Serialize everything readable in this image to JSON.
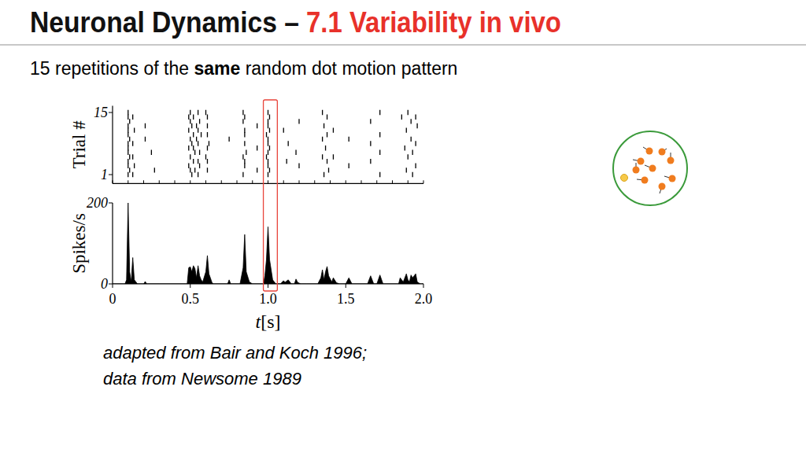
{
  "header": {
    "title": "Neuronal Dynamics –",
    "section": "7.1 Variability in vivo"
  },
  "subtitle": {
    "before": "15 repetitions of the",
    "bold": "same",
    "after": "random dot motion pattern"
  },
  "caption": [
    "adapted from Bair and Koch 1996;",
    "data from Newsome 1989"
  ],
  "chart_data": [
    {
      "type": "scatter",
      "marker": "tick",
      "color": "#000000",
      "y_label": "Trial #",
      "x": [
        0.1,
        0.13,
        0.51,
        0.55,
        0.84,
        1.0,
        1.36,
        1.72,
        1.93,
        0.11,
        0.27,
        0.5,
        0.53,
        0.61,
        0.93,
        1.01,
        1.39,
        1.89,
        0.1,
        0.14,
        0.49,
        0.56,
        0.85,
        1.0,
        1.2,
        1.52,
        1.95,
        0.1,
        0.52,
        0.55,
        0.61,
        0.85,
        1.0,
        1.12,
        1.38,
        1.66,
        0.11,
        0.13,
        0.5,
        0.6,
        0.84,
        0.99,
        1.35,
        1.42,
        1.9,
        0.1,
        0.25,
        0.53,
        0.56,
        0.86,
        1.0,
        1.18,
        1.72,
        1.93,
        0.1,
        0.49,
        0.52,
        0.61,
        0.93,
        1.01,
        1.37,
        1.88,
        0.1,
        0.13,
        0.51,
        0.55,
        0.62,
        0.85,
        1.0,
        1.13,
        1.66,
        1.95,
        0.11,
        0.21,
        0.5,
        0.54,
        0.75,
        1.0,
        1.35,
        1.52,
        1.92,
        0.1,
        0.52,
        0.57,
        0.61,
        0.85,
        0.99,
        1.38,
        1.72,
        0.1,
        0.14,
        0.49,
        0.55,
        0.85,
        1.01,
        1.1,
        1.42,
        1.89,
        0.1,
        0.21,
        0.51,
        0.54,
        0.61,
        0.93,
        1.0,
        1.36,
        1.96,
        0.11,
        0.5,
        0.56,
        0.84,
        1.0,
        1.2,
        1.66,
        1.92,
        0.1,
        0.13,
        0.49,
        0.52,
        0.61,
        0.85,
        1.01,
        1.38,
        1.86,
        1.95,
        0.1,
        0.5,
        0.55,
        0.6,
        0.84,
        1.0,
        1.35,
        1.72,
        1.9
      ],
      "values": [
        1,
        1,
        1,
        1,
        1,
        1,
        1,
        1,
        1,
        2,
        2,
        2,
        2,
        2,
        2,
        2,
        2,
        2,
        3,
        3,
        3,
        3,
        3,
        3,
        3,
        3,
        3,
        4,
        4,
        4,
        4,
        4,
        4,
        4,
        4,
        4,
        5,
        5,
        5,
        5,
        5,
        5,
        5,
        5,
        5,
        6,
        6,
        6,
        6,
        6,
        6,
        6,
        6,
        6,
        7,
        7,
        7,
        7,
        7,
        7,
        7,
        7,
        8,
        8,
        8,
        8,
        8,
        8,
        8,
        8,
        8,
        8,
        9,
        9,
        9,
        9,
        9,
        9,
        9,
        9,
        9,
        10,
        10,
        10,
        10,
        10,
        10,
        10,
        10,
        11,
        11,
        11,
        11,
        11,
        11,
        11,
        11,
        11,
        12,
        12,
        12,
        12,
        12,
        12,
        12,
        12,
        12,
        13,
        13,
        13,
        13,
        13,
        13,
        13,
        13,
        14,
        14,
        14,
        14,
        14,
        14,
        14,
        14,
        14,
        14,
        15,
        15,
        15,
        15,
        15,
        15,
        15,
        15,
        15
      ],
      "xlim": [
        0,
        2
      ],
      "xticks": [
        0,
        0.1,
        0.2,
        0.3,
        0.4,
        0.5,
        0.6,
        0.7,
        0.8,
        0.9,
        1,
        1.1,
        1.2,
        1.3,
        1.4,
        1.5,
        1.6,
        1.7,
        1.8,
        1.9,
        2
      ],
      "ylim": [
        -1,
        16.5
      ],
      "yticks": [
        1,
        15
      ],
      "tick_labels": "y"
    },
    {
      "type": "area",
      "color": "#000000",
      "y_label": "Spikes/s",
      "x_label": "t[s]",
      "x": [
        0,
        0.08,
        0.09,
        0.1,
        0.11,
        0.12,
        0.13,
        0.14,
        0.16,
        0.2,
        0.21,
        0.22,
        0.3,
        0.48,
        0.49,
        0.5,
        0.51,
        0.52,
        0.53,
        0.54,
        0.55,
        0.56,
        0.57,
        0.58,
        0.6,
        0.61,
        0.62,
        0.64,
        0.65,
        0.74,
        0.75,
        0.76,
        0.82,
        0.84,
        0.85,
        0.86,
        0.88,
        0.9,
        0.97,
        0.98,
        0.99,
        1.0,
        1.01,
        1.03,
        1.05,
        1.08,
        1.1,
        1.11,
        1.13,
        1.15,
        1.17,
        1.18,
        1.19,
        1.21,
        1.25,
        1.32,
        1.34,
        1.35,
        1.36,
        1.37,
        1.38,
        1.39,
        1.41,
        1.42,
        1.44,
        1.46,
        1.5,
        1.52,
        1.54,
        1.62,
        1.64,
        1.66,
        1.68,
        1.7,
        1.72,
        1.74,
        1.76,
        1.84,
        1.85,
        1.87,
        1.89,
        1.9,
        1.91,
        1.92,
        1.93,
        1.95,
        1.96,
        1.98,
        2.0
      ],
      "values": [
        0,
        0,
        10,
        200,
        30,
        5,
        65,
        10,
        0,
        0,
        6,
        0,
        0,
        0,
        40,
        42,
        30,
        45,
        38,
        15,
        45,
        20,
        10,
        5,
        30,
        70,
        25,
        3,
        0,
        0,
        10,
        0,
        0,
        40,
        122,
        30,
        5,
        0,
        0,
        20,
        60,
        141,
        60,
        10,
        0,
        0,
        8,
        4,
        10,
        0,
        0,
        12,
        4,
        0,
        0,
        0,
        15,
        35,
        10,
        30,
        43,
        20,
        5,
        15,
        3,
        0,
        0,
        15,
        0,
        0,
        0,
        20,
        0,
        0,
        22,
        0,
        0,
        0,
        15,
        5,
        25,
        10,
        5,
        22,
        15,
        25,
        5,
        0,
        0
      ],
      "xlim": [
        0,
        2
      ],
      "xticks": [
        0,
        0.5,
        {
          "value": 1,
          "label": "1.0"
        },
        1.5,
        {
          "value": 2,
          "label": "2.0"
        }
      ],
      "ylim": [
        0,
        200
      ],
      "yticks": [
        0,
        200
      ],
      "highlight": [
        0.97,
        1.06
      ]
    }
  ]
}
